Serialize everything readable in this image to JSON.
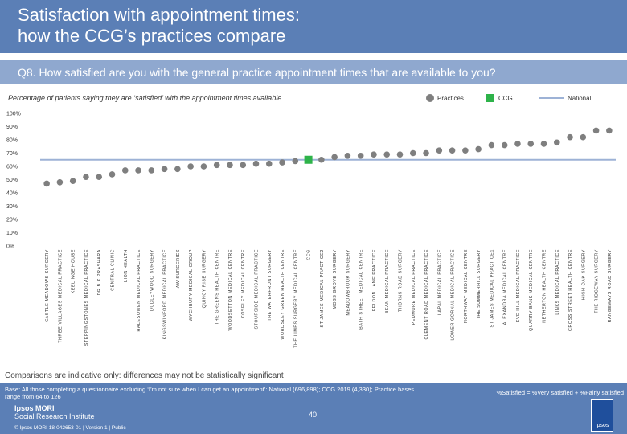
{
  "header": {
    "title_line1": "Satisfaction with appointment times:",
    "title_line2": "how the CCG’s practices compare",
    "question": "Q8. How satisfied are you with the general practice appointment times that are available to you?"
  },
  "legend": {
    "practices": "Practices",
    "ccg": "CCG",
    "national": "National"
  },
  "colors": {
    "practice": "#7f7f7f",
    "ccg": "#2eb34a",
    "national": "#9db2d6",
    "header": "#5b7fb6"
  },
  "chart_data": {
    "type": "scatter",
    "title": "Percentage of patients saying they are ‘satisfied’ with the appointment times available",
    "ylim": [
      0,
      100
    ],
    "y_ticks": [
      "0%",
      "10%",
      "20%",
      "30%",
      "40%",
      "50%",
      "60%",
      "70%",
      "80%",
      "90%",
      "100%"
    ],
    "y_tick_values": [
      0,
      10,
      20,
      30,
      40,
      50,
      60,
      70,
      80,
      90,
      100
    ],
    "national": 65,
    "categories": [
      "CASTLE MEADOWS SURGERY",
      "THREE VILLAGES MEDICAL PRACTICE",
      "KEELINGE HOUSE",
      "STEPPINGSTONES MEDICAL PRACTICE",
      "DR B K PRASHARA",
      "CENTRAL CLINIC",
      "LION HEALTH",
      "HALESOWEN MEDICAL PRACTICE",
      "DUDLEYWOOD SURGERY",
      "KINGSWINFORD MEDICAL PRACTICE",
      "AW SURGERIES",
      "WYCHBURY MEDICAL GROUP",
      "QUINCY RISE SURGERY",
      "THE GREENS HEALTH CENTRE",
      "WOODSETTON MEDICAL CENTRE",
      "COSELEY MEDICAL CENTRE",
      "STOURSIDE MEDICAL PRACTICE",
      "THE WATERFRONT SURGERY",
      "WORDSLEY GREEN HEALTH CENTRE",
      "THE LIMES SURGERY MEDICAL CENTRE",
      "CCG",
      "ST JAMES MEDICAL PRACTICE2",
      "MOSS GROVE SURGERY",
      "MEADOWBROOK SURGERY",
      "BATH STREET MEDICAL CENTRE",
      "FELDON LANE PRACTICE",
      "BEAN MEDICAL PRACTICE",
      "THORNS ROAD SURGERY",
      "PEDMORE MEDICAL PRACTICE",
      "CLEMENT ROAD MEDICAL PRACTICE",
      "LAPAL MEDICAL PRACTICE",
      "LOWER GORNAL MEDICAL PRACTICE",
      "NORTHWAY MEDICAL CENTRE",
      "THE SUMMERHILL SURGERY",
      "ST JAMES MEDICAL PRACTICE1",
      "ALEXANDRA MEDICAL CENTRE",
      "EVE HILL MEDICAL PRACTICE",
      "QUARRY BANK MEDICAL CENTRE",
      "NETHERTON HEALTH CENTRE",
      "LINKS MEDICAL PRACTICE",
      "CROSS STREET HEALTH CENTRE",
      "HIGH OAK SURGERY",
      "THE RIDGEWAY SURGERY",
      "RANGEWAYS ROAD SURGERY"
    ],
    "values": [
      47,
      48,
      49,
      52,
      52,
      54,
      57,
      57,
      57,
      58,
      58,
      60,
      60,
      61,
      61,
      61,
      62,
      62,
      63,
      64,
      65,
      65,
      67,
      68,
      68,
      69,
      69,
      69,
      70,
      70,
      72,
      72,
      72,
      73,
      76,
      76,
      77,
      77,
      77,
      78,
      82,
      82,
      87,
      87
    ],
    "ccg_index": 20
  },
  "caveat": "Comparisons are indicative only: differences may not be statistically significant",
  "footer": {
    "base": "Base: All those completing a questionnaire excluding ‘I’m not sure when I can get an appointment’: National (696,898); CCG 2019 (4,330); Practice bases range from 64 to 126",
    "formula": "%Satisfied = %Very satisfied + %Fairly satisfied",
    "brand_line1": "Ipsos MORI",
    "brand_line2": "Social Research Institute",
    "copyright": "© Ipsos MORI   18-042653-01 | Version 1 | Public",
    "page": "40",
    "logo_text": "Ipsos"
  }
}
